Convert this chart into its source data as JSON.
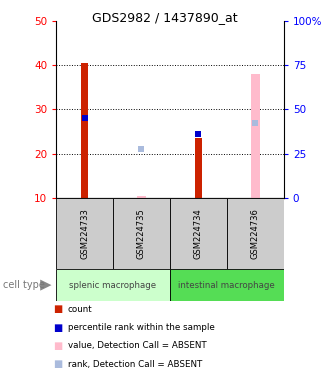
{
  "title": "GDS2982 / 1437890_at",
  "samples": [
    "GSM224733",
    "GSM224735",
    "GSM224734",
    "GSM224736"
  ],
  "ylim_left": [
    10,
    50
  ],
  "ylim_right": [
    0,
    100
  ],
  "left_ticks": [
    10,
    20,
    30,
    40,
    50
  ],
  "right_ticks": [
    0,
    25,
    50,
    75,
    100
  ],
  "left_tick_labels": [
    "10",
    "20",
    "30",
    "40",
    "50"
  ],
  "right_tick_labels": [
    "0",
    "25",
    "50",
    "75",
    "100%"
  ],
  "gridline_values": [
    20,
    30,
    40
  ],
  "count_bars": [
    {
      "x": 0,
      "value": 40.5,
      "color": "#cc2200"
    },
    {
      "x": 2,
      "value": 23.5,
      "color": "#cc2200"
    }
  ],
  "absent_value_bars": [
    {
      "x": 1,
      "value": 10.5,
      "color": "#ffbbcc"
    },
    {
      "x": 3,
      "value": 38.0,
      "color": "#ffbbcc"
    }
  ],
  "percentile_markers": [
    {
      "x": 0,
      "value": 28.0,
      "color": "#0000cc"
    },
    {
      "x": 2,
      "value": 24.5,
      "color": "#0000cc"
    }
  ],
  "absent_rank_markers": [
    {
      "x": 1,
      "value": 21.0,
      "color": "#aabbdd"
    },
    {
      "x": 3,
      "value": 27.0,
      "color": "#aabbdd"
    }
  ],
  "legend": [
    {
      "color": "#cc2200",
      "label": "count"
    },
    {
      "color": "#0000cc",
      "label": "percentile rank within the sample"
    },
    {
      "color": "#ffbbcc",
      "label": "value, Detection Call = ABSENT"
    },
    {
      "color": "#aabbdd",
      "label": "rank, Detection Call = ABSENT"
    }
  ],
  "cell_type_groups": [
    {
      "label": "splenic macrophage",
      "start": 0,
      "end": 2,
      "color": "#ccffcc"
    },
    {
      "label": "intestinal macrophage",
      "start": 2,
      "end": 4,
      "color": "#55dd55"
    }
  ],
  "cell_type_label": "cell type",
  "bg_color": "#ffffff",
  "sample_bg": "#cccccc"
}
